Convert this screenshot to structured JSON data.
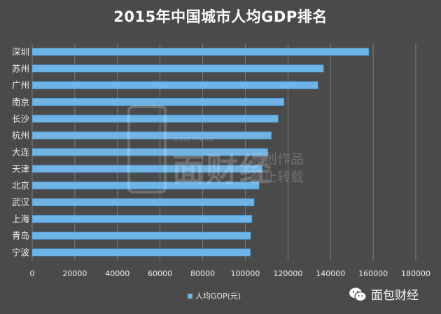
{
  "chart_data": {
    "type": "bar",
    "orientation": "horizontal",
    "title": "2015年中国城市人均GDP排名",
    "categories": [
      "深圳",
      "苏州",
      "广州",
      "南京",
      "长沙",
      "杭州",
      "大连",
      "天津",
      "北京",
      "武汉",
      "上海",
      "青岛",
      "宁波"
    ],
    "series": [
      {
        "name": "人均GDP(元)",
        "values": [
          157985,
          136702,
          134066,
          118171,
          115443,
          112230,
          110600,
          107960,
          106497,
          104132,
          103100,
          102519,
          102374
        ]
      }
    ],
    "xlim": [
      0,
      180000
    ],
    "xticks": [
      0,
      20000,
      40000,
      60000,
      80000,
      100000,
      120000,
      140000,
      160000,
      180000
    ],
    "grid": true,
    "legend_position": "bottom-center",
    "colors": {
      "background": "#4a4a4a",
      "bar": "#6fb4e6",
      "bar_edge": "#3d8cc9",
      "grid": "#8a8a8a",
      "text": "#f2f2f2"
    }
  },
  "watermark": {
    "text_big": "面财经",
    "text_sub": "Bread Finance",
    "text_right_1": "原创作品",
    "text_right_2": "禁止转载"
  },
  "brand": {
    "name": "面包财经",
    "logo_icon": "wechat-icon"
  }
}
